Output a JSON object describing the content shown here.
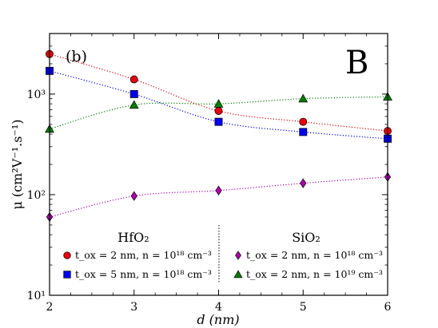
{
  "chart_data": {
    "type": "scatter",
    "panel_label": "(b)",
    "corner_letter": "B",
    "xlabel": "d (nm)",
    "ylabel": "μ (cm²V⁻¹.s⁻¹)",
    "xlim": [
      2,
      6
    ],
    "ylim": [
      10,
      4000
    ],
    "y_scale": "log",
    "x_ticks": [
      2,
      3,
      4,
      5,
      6
    ],
    "y_ticks": [
      10,
      100,
      1000
    ],
    "y_tick_labels": [
      "10¹",
      "10²",
      "10³"
    ],
    "legend_groups": [
      "HfO₂",
      "SiO₂"
    ],
    "legend_placement": "bottom",
    "series": [
      {
        "name": "t_ox = 2 nm, n = 10¹⁸ cm⁻³",
        "group": "HfO₂",
        "marker": "circle",
        "color": "#e8000b",
        "line_color": "#e8000b",
        "x": [
          2,
          3,
          4,
          5,
          6
        ],
        "y": [
          2500,
          1400,
          680,
          530,
          430
        ]
      },
      {
        "name": "t_ox = 5 nm, n = 10¹⁸ cm⁻³",
        "group": "HfO₂",
        "marker": "square",
        "color": "#0000ee",
        "line_color": "#0000ee",
        "x": [
          2,
          3,
          4,
          5,
          6
        ],
        "y": [
          1700,
          1000,
          530,
          420,
          360
        ]
      },
      {
        "name": "t_ox = 2 nm, n = 10¹⁸ cm⁻³",
        "group": "SiO₂",
        "marker": "diamond",
        "color": "#b000b0",
        "line_color": "#b000b0",
        "x": [
          2,
          3,
          4,
          5,
          6
        ],
        "y": [
          60,
          97,
          110,
          130,
          150
        ]
      },
      {
        "name": "t_ox = 2 nm, n = 10¹⁹ cm⁻³",
        "group": "SiO₂",
        "marker": "triangle",
        "color": "#008000",
        "line_color": "#008000",
        "x": [
          2,
          3,
          4,
          5,
          6
        ],
        "y": [
          450,
          780,
          800,
          900,
          940
        ]
      }
    ]
  }
}
